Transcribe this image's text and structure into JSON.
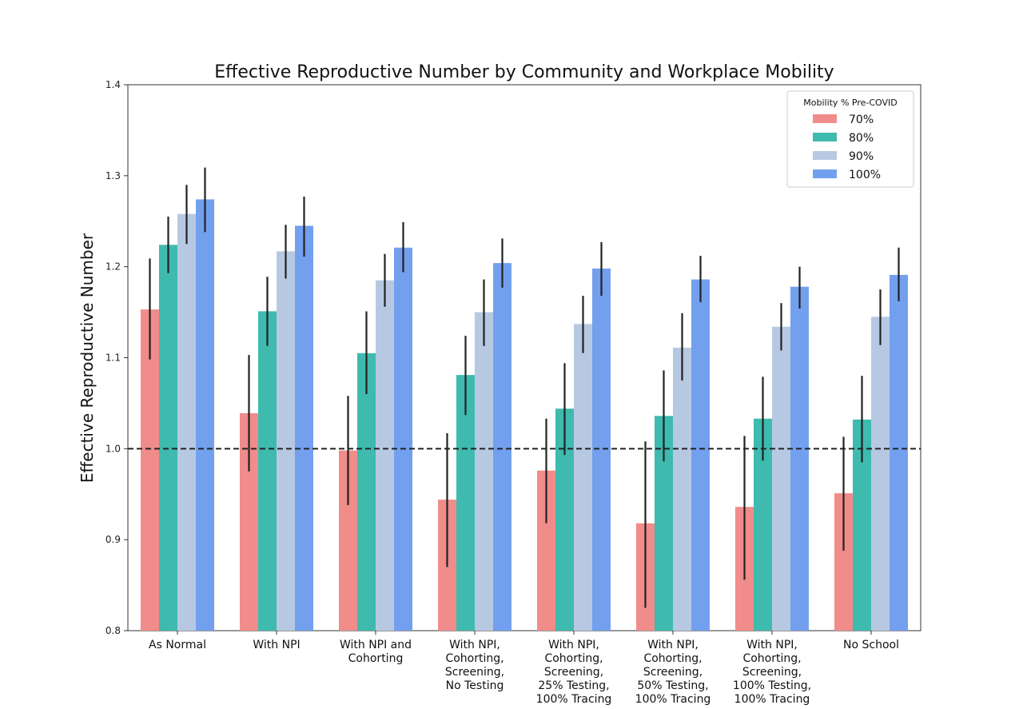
{
  "chart_data": {
    "type": "bar",
    "title": "Effective Reproductive Number by Community and Workplace Mobility",
    "xlabel": "",
    "ylabel": "Effective Reproductive Number",
    "ylim": [
      0.8,
      1.4
    ],
    "yticks": [
      "0.8",
      "0.9",
      "1.0",
      "1.1",
      "1.2",
      "1.3",
      "1.4"
    ],
    "reference_line": 1.0,
    "legend": {
      "title": "Mobility % Pre-COVID",
      "position": "top-right"
    },
    "categories": [
      [
        "As Normal"
      ],
      [
        "With NPI"
      ],
      [
        "With NPI and",
        "Cohorting"
      ],
      [
        "With NPI,",
        "Cohorting,",
        "Screening,",
        "No Testing"
      ],
      [
        "With NPI,",
        "Cohorting,",
        "Screening,",
        "25% Testing,",
        "100% Tracing"
      ],
      [
        "With NPI,",
        "Cohorting,",
        "Screening,",
        "50% Testing,",
        "100% Tracing"
      ],
      [
        "With NPI,",
        "Cohorting,",
        "Screening,",
        "100% Testing,",
        "100% Tracing"
      ],
      [
        "No School"
      ]
    ],
    "series": [
      {
        "name": "70%",
        "color": "#f08c8a",
        "values": [
          1.153,
          1.039,
          0.998,
          0.944,
          0.976,
          0.918,
          0.936,
          0.951
        ],
        "err_low": [
          1.098,
          0.975,
          0.938,
          0.87,
          0.918,
          0.825,
          0.856,
          0.888
        ],
        "err_high": [
          1.209,
          1.103,
          1.058,
          1.017,
          1.033,
          1.008,
          1.014,
          1.013
        ]
      },
      {
        "name": "80%",
        "color": "#3ebaae",
        "values": [
          1.224,
          1.151,
          1.105,
          1.081,
          1.044,
          1.036,
          1.033,
          1.032
        ],
        "err_low": [
          1.193,
          1.113,
          1.06,
          1.037,
          0.993,
          0.986,
          0.987,
          0.985
        ],
        "err_high": [
          1.255,
          1.189,
          1.151,
          1.124,
          1.094,
          1.086,
          1.079,
          1.08
        ]
      },
      {
        "name": "90%",
        "color": "#b7c9e2",
        "values": [
          1.258,
          1.217,
          1.185,
          1.15,
          1.137,
          1.111,
          1.134,
          1.145
        ],
        "err_low": [
          1.225,
          1.187,
          1.156,
          1.113,
          1.105,
          1.075,
          1.108,
          1.114
        ],
        "err_high": [
          1.29,
          1.246,
          1.214,
          1.186,
          1.168,
          1.149,
          1.16,
          1.175
        ]
      },
      {
        "name": "100%",
        "color": "#73a0ee",
        "values": [
          1.274,
          1.245,
          1.221,
          1.204,
          1.198,
          1.186,
          1.178,
          1.191
        ],
        "err_low": [
          1.238,
          1.211,
          1.194,
          1.177,
          1.168,
          1.161,
          1.154,
          1.162
        ],
        "err_high": [
          1.309,
          1.277,
          1.249,
          1.231,
          1.227,
          1.212,
          1.2,
          1.221
        ]
      }
    ]
  }
}
